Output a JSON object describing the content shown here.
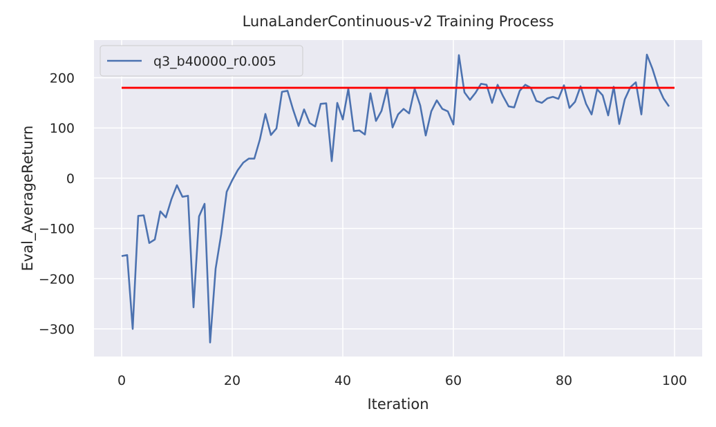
{
  "chart_data": {
    "type": "line",
    "title": "LunaLanderContinuous-v2 Training Process",
    "xlabel": "Iteration",
    "ylabel": "Eval_AverageReturn",
    "xlim": [
      -5,
      105
    ],
    "ylim": [
      -355,
      275
    ],
    "xticks": [
      0,
      20,
      40,
      60,
      80,
      100
    ],
    "yticks": [
      200,
      100,
      0,
      -100,
      -200,
      -300
    ],
    "xtick_labels": [
      "0",
      "20",
      "40",
      "60",
      "80",
      "100"
    ],
    "ytick_labels": [
      "200",
      "100",
      "0",
      "−100",
      "−200",
      "−300"
    ],
    "grid": true,
    "legend_position": "top-left",
    "series": [
      {
        "name": "q3_b40000_r0.005",
        "color": "#4c72b0",
        "x": [
          0,
          1,
          2,
          3,
          4,
          5,
          6,
          7,
          8,
          9,
          10,
          11,
          12,
          13,
          14,
          15,
          16,
          17,
          18,
          19,
          20,
          21,
          22,
          23,
          24,
          25,
          26,
          27,
          28,
          29,
          30,
          31,
          32,
          33,
          34,
          35,
          36,
          37,
          38,
          39,
          40,
          41,
          42,
          43,
          44,
          45,
          46,
          47,
          48,
          49,
          50,
          51,
          52,
          53,
          54,
          55,
          56,
          57,
          58,
          59,
          60,
          61,
          62,
          63,
          64,
          65,
          66,
          67,
          68,
          69,
          70,
          71,
          72,
          73,
          74,
          75,
          76,
          77,
          78,
          79,
          80,
          81,
          82,
          83,
          84,
          85,
          86,
          87,
          88,
          89,
          90,
          91,
          92,
          93,
          94,
          95,
          96,
          97,
          98,
          99
        ],
        "y": [
          -155,
          -153,
          -300,
          -75,
          -74,
          -129,
          -122,
          -66,
          -78,
          -42,
          -14,
          -37,
          -35,
          -257,
          -76,
          -51,
          -327,
          -180,
          -112,
          -27,
          -4,
          16,
          31,
          39,
          39,
          77,
          128,
          86,
          99,
          172,
          174,
          137,
          104,
          137,
          110,
          103,
          148,
          149,
          34,
          150,
          117,
          178,
          94,
          95,
          87,
          169,
          114,
          134,
          178,
          101,
          127,
          138,
          129,
          178,
          145,
          85,
          133,
          155,
          138,
          133,
          107,
          245,
          171,
          156,
          170,
          188,
          186,
          150,
          186,
          163,
          143,
          141,
          174,
          186,
          180,
          154,
          150,
          159,
          162,
          158,
          185,
          140,
          152,
          183,
          148,
          127,
          177,
          165,
          125,
          182,
          108,
          157,
          181,
          191,
          127,
          246,
          218,
          183,
          159,
          143
        ]
      },
      {
        "name": "",
        "color": "#ff0000",
        "x": [
          0,
          100
        ],
        "y": [
          180,
          180
        ]
      }
    ]
  }
}
